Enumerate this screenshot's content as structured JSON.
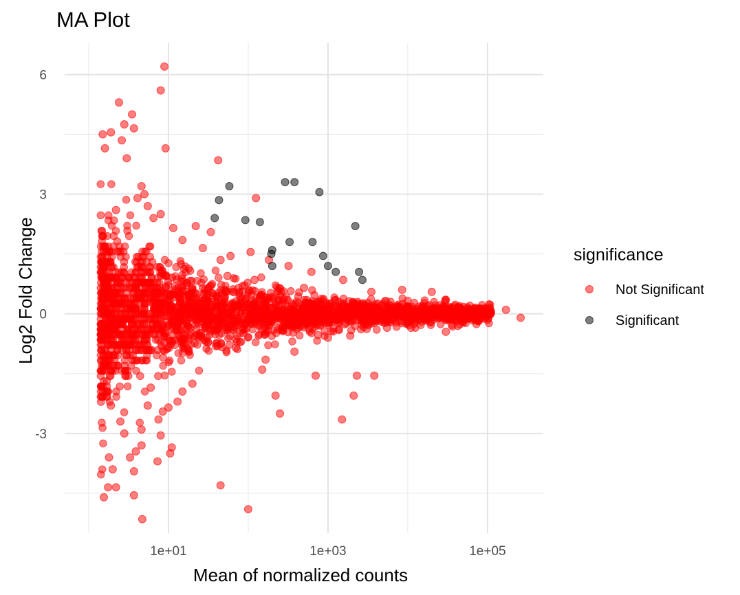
{
  "chart_data": {
    "type": "scatter",
    "title": "MA Plot",
    "xlabel": "Mean of normalized counts",
    "ylabel": "Log2 Fold Change",
    "x_scale": "log10",
    "xlim": [
      0.5,
      500000
    ],
    "ylim": [
      -5.5,
      6.8
    ],
    "x_ticks": [
      {
        "value": 10,
        "label": "1e+01"
      },
      {
        "value": 1000,
        "label": "1e+03"
      },
      {
        "value": 100000,
        "label": "1e+05"
      }
    ],
    "y_ticks": [
      {
        "value": -3,
        "label": "-3"
      },
      {
        "value": 0,
        "label": "0"
      },
      {
        "value": 3,
        "label": "3"
      },
      {
        "value": 6,
        "label": "6"
      }
    ],
    "grid": true,
    "legend": {
      "title": "significance",
      "position": "right",
      "entries": [
        {
          "label": "Not Significant",
          "color": "#ff0000"
        },
        {
          "label": "Significant",
          "color": "#000000"
        }
      ]
    },
    "series": [
      {
        "name": "Not Significant",
        "color": "#ff0000",
        "opacity": 0.5,
        "points": [
          [
            8.9,
            6.2
          ],
          [
            8.0,
            5.6
          ],
          [
            2.4,
            5.3
          ],
          [
            3.5,
            5.0
          ],
          [
            3.7,
            4.65
          ],
          [
            2.8,
            4.75
          ],
          [
            1.5,
            4.5
          ],
          [
            1.9,
            4.55
          ],
          [
            2.6,
            4.35
          ],
          [
            9.2,
            4.15
          ],
          [
            1.6,
            4.15
          ],
          [
            3.0,
            3.9
          ],
          [
            42,
            3.85
          ],
          [
            4.6,
            3.2
          ],
          [
            5.0,
            3.0
          ],
          [
            125,
            2.9
          ],
          [
            2.2,
            2.6
          ],
          [
            4.1,
            2.9
          ],
          [
            5.5,
            2.7
          ],
          [
            6.5,
            2.4
          ],
          [
            8.0,
            2.5
          ],
          [
            11.5,
            2.15
          ],
          [
            22,
            2.2
          ],
          [
            34,
            2.05
          ],
          [
            15,
            1.85
          ],
          [
            27,
            1.65
          ],
          [
            60,
            1.45
          ],
          [
            107,
            1.55
          ],
          [
            182,
            1.35
          ],
          [
            45,
            1.35
          ],
          [
            320,
            1.2
          ],
          [
            620,
            1.05
          ],
          [
            1550,
            0.85
          ],
          [
            3500,
            0.55
          ],
          [
            8500,
            0.6
          ],
          [
            20000,
            0.55
          ],
          [
            30000,
            0.35
          ],
          [
            60000,
            0.2
          ],
          [
            80000,
            -0.05
          ],
          [
            100000,
            -0.15
          ],
          [
            170000,
            0.1
          ],
          [
            260000,
            -0.1
          ],
          [
            30000,
            -0.45
          ],
          [
            12000,
            -0.25
          ],
          [
            5500,
            -0.35
          ],
          [
            1000,
            -0.6
          ],
          [
            700,
            -1.55
          ],
          [
            380,
            -0.95
          ],
          [
            165,
            -1.15
          ],
          [
            150,
            -1.4
          ],
          [
            70,
            -0.85
          ],
          [
            40,
            -0.75
          ],
          [
            25,
            -0.55
          ],
          [
            20,
            -1.75
          ],
          [
            15,
            -1.95
          ],
          [
            13,
            -2.2
          ],
          [
            10,
            -2.35
          ],
          [
            8.5,
            -2.45
          ],
          [
            7.5,
            -2.65
          ],
          [
            250,
            -2.5
          ],
          [
            220,
            -2.05
          ],
          [
            1500,
            -2.65
          ],
          [
            2300,
            -1.55
          ],
          [
            2100,
            -2.05
          ],
          [
            3800,
            -1.55
          ],
          [
            1900,
            -0.55
          ],
          [
            10000,
            -0.2
          ],
          [
            6000,
            0.15
          ],
          [
            2600,
            0.25
          ],
          [
            500,
            0.65
          ],
          [
            120,
            0.85
          ],
          [
            55,
            0.95
          ],
          [
            4.6,
            -2.9
          ],
          [
            4.6,
            -3.3
          ],
          [
            3.9,
            -3.45
          ],
          [
            7.3,
            -3.7
          ],
          [
            8.0,
            -3.05
          ],
          [
            11.0,
            -3.35
          ],
          [
            10.5,
            -3.5
          ],
          [
            3.7,
            -3.95
          ],
          [
            2.2,
            -4.35
          ],
          [
            1.75,
            -4.35
          ],
          [
            3.7,
            -4.55
          ],
          [
            1.55,
            -4.6
          ],
          [
            4.7,
            -5.15
          ],
          [
            45,
            -4.3
          ],
          [
            100,
            -4.9
          ],
          [
            1.8,
            -3.6
          ],
          [
            2.0,
            -3.9
          ],
          [
            2.8,
            -3.0
          ],
          [
            3.3,
            -3.6
          ],
          [
            2.5,
            -2.7
          ],
          [
            1.9,
            -2.3
          ],
          [
            5.5,
            -2.3
          ],
          [
            6.0,
            -1.85
          ]
        ]
      },
      {
        "name": "Significant",
        "color": "#000000",
        "opacity": 0.5,
        "points": [
          [
            58,
            3.2
          ],
          [
            290,
            3.3
          ],
          [
            380,
            3.3
          ],
          [
            780,
            3.05
          ],
          [
            43,
            2.85
          ],
          [
            38,
            2.4
          ],
          [
            92,
            2.35
          ],
          [
            140,
            2.3
          ],
          [
            2200,
            2.2
          ],
          [
            330,
            1.8
          ],
          [
            640,
            1.8
          ],
          [
            200,
            1.6
          ],
          [
            195,
            1.5
          ],
          [
            870,
            1.45
          ],
          [
            200,
            1.2
          ],
          [
            1000,
            1.2
          ],
          [
            1250,
            1.05
          ],
          [
            2450,
            1.05
          ],
          [
            2700,
            0.85
          ]
        ]
      }
    ]
  }
}
